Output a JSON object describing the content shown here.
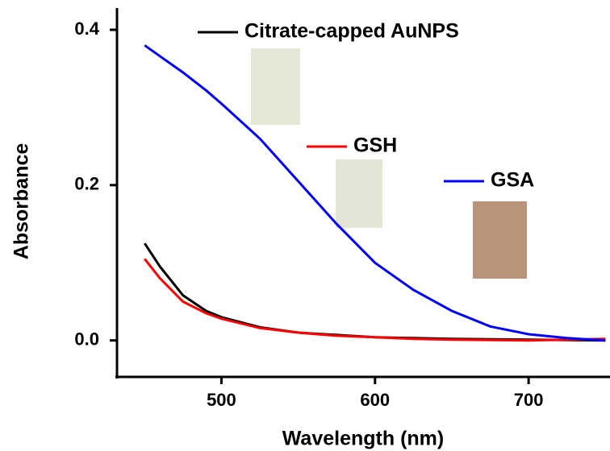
{
  "chart_data": {
    "type": "line",
    "x_label": "Wavelength (nm)",
    "y_label": "Absorbance",
    "x": [
      450,
      460,
      475,
      490,
      500,
      525,
      550,
      575,
      600,
      625,
      650,
      675,
      700,
      725,
      750
    ],
    "series": [
      {
        "name": "Citrate-capped AuNPS",
        "color": "#000000",
        "values": [
          0.125,
          0.095,
          0.058,
          0.038,
          0.03,
          0.017,
          0.01,
          0.007,
          0.004,
          0.003,
          0.002,
          0.0015,
          0.001,
          0.0005,
          0.0
        ]
      },
      {
        "name": "GSH",
        "color": "#ff0000",
        "values": [
          0.105,
          0.08,
          0.05,
          0.035,
          0.028,
          0.016,
          0.01,
          0.006,
          0.004,
          0.002,
          0.001,
          0.0005,
          0.0,
          0.001,
          0.002
        ]
      },
      {
        "name": "GSA",
        "color": "#0000ff",
        "values": [
          0.38,
          0.366,
          0.345,
          0.322,
          0.305,
          0.26,
          0.205,
          0.15,
          0.1,
          0.065,
          0.038,
          0.018,
          0.008,
          0.003,
          0.0
        ]
      }
    ],
    "xlim": [
      432,
      753
    ],
    "ylim": [
      -0.047,
      0.428
    ],
    "xticks": [
      500,
      600,
      700
    ],
    "yticks": [
      {
        "value": 0,
        "label": "0.0"
      },
      {
        "value": 0.2,
        "label": "0.2"
      },
      {
        "value": 0.4,
        "label": "0.4"
      }
    ]
  }
}
